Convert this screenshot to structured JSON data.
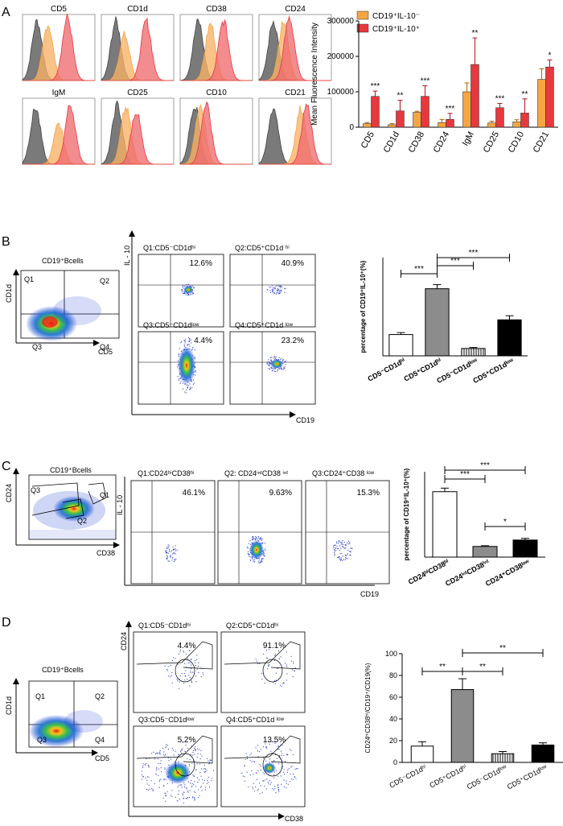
{
  "panels": {
    "A": {
      "letter": "A",
      "histograms": [
        {
          "label": "CD5"
        },
        {
          "label": "CD1d"
        },
        {
          "label": "CD38"
        },
        {
          "label": "CD24"
        },
        {
          "label": "IgM"
        },
        {
          "label": "CD25"
        },
        {
          "label": "CD10"
        },
        {
          "label": "CD21"
        }
      ],
      "legend": {
        "neg": "CD19⁺IL-10⁻",
        "pos": "CD19⁺IL-10⁺"
      },
      "colors": {
        "neg": "#f4a341",
        "pos": "#e8383d",
        "gray": "#555555",
        "negFill": "#f7b266",
        "posFill": "#ee6b6f"
      }
    },
    "B": {
      "letter": "B",
      "gate_title": "CD19⁺Bcells",
      "quads": [
        "Q1",
        "Q2",
        "Q3",
        "Q4"
      ],
      "x_axis": "CD5",
      "y_axis": "CD1d",
      "sub": [
        {
          "title": "Q1:CD5⁻CD1dʰⁱ",
          "pct": "12.6%"
        },
        {
          "title": "Q2:CD5⁺CD1d ʰⁱ",
          "pct": "40.9%"
        },
        {
          "title": "Q3:CD5⁻CD1dˡᵒʷ",
          "pct": "4.4%"
        },
        {
          "title": "Q4:CD5⁺CD1d ˡᵒʷ",
          "pct": "23.2%"
        }
      ],
      "il10": "IL - 10",
      "cd19": "CD19"
    },
    "C": {
      "letter": "C",
      "gate_title": "CD19⁺Bcells",
      "gates": [
        "Q3",
        "Q1",
        "Q2"
      ],
      "x_axis": "CD38",
      "y_axis": "CD24",
      "sub": [
        {
          "title": "Q1:CD24ʰⁱCD38ʰⁱ",
          "pct": "46.1%"
        },
        {
          "title": "Q2: CD24ⁱⁿᵗCD38 ⁱⁿᵗ",
          "pct": "9.63%"
        },
        {
          "title": "Q3:CD24⁺CD38 ˡᵒʷ",
          "pct": "15.3%"
        }
      ],
      "il10": "IL - 10",
      "cd19": "CD19"
    },
    "D": {
      "letter": "D",
      "gate_title": "CD19⁺Bcells",
      "quads": [
        "Q1",
        "Q2",
        "Q3",
        "Q4"
      ],
      "x_axis": "CD5",
      "y_axis": "CD1d",
      "sub": [
        {
          "title": "Q1:CD5⁻CD1dʰⁱ",
          "pct": "4.4%"
        },
        {
          "title": "Q2:CD5⁺CD1dʰⁱ",
          "pct": "91.1%"
        },
        {
          "title": "Q3:CD5⁻CD1dˡᵒʷ",
          "pct": "5.2%"
        },
        {
          "title": "Q4:CD5⁺CD1d ˡᵒʷ",
          "pct": "13.5%"
        }
      ],
      "cd24": "CD24",
      "cd38": "CD38"
    }
  },
  "chart_data": [
    {
      "id": "A",
      "type": "bar",
      "title": "",
      "xlabel": "",
      "ylabel": "Mean Fluorescence Intensity",
      "ylim": [
        0,
        300000
      ],
      "yticks": [
        0,
        100000,
        200000,
        300000
      ],
      "ytick_labels": [
        "0",
        "100000",
        "200000",
        "300000"
      ],
      "categories": [
        "CD5",
        "CD1d",
        "CD38",
        "CD24",
        "IgM",
        "CD25",
        "CD10",
        "CD21"
      ],
      "series": [
        {
          "name": "CD19⁺IL-10⁻",
          "values": [
            10000,
            7000,
            42000,
            13000,
            100000,
            12000,
            15000,
            135000
          ],
          "errors": [
            3000,
            3000,
            3000,
            9000,
            25000,
            5000,
            6000,
            30000
          ]
        },
        {
          "name": "CD19⁺IL-10⁺",
          "values": [
            87000,
            46000,
            87000,
            22000,
            177000,
            55000,
            40000,
            170000
          ],
          "errors": [
            15000,
            30000,
            30000,
            17000,
            75000,
            12000,
            40000,
            20000
          ]
        }
      ],
      "significance": [
        "***",
        "**",
        "***",
        "***",
        "**",
        "***",
        "**",
        "*"
      ]
    },
    {
      "id": "B",
      "type": "bar",
      "ylabel": "percentage of CD19⁺IL-10⁺(%)",
      "ylim": [
        0,
        60
      ],
      "categories": [
        "CD5⁻CD1dʰⁱ",
        "CD5⁺CD1dʰⁱ",
        "CD5⁻CD1dˡᵒʷ",
        "CD5⁺CD1dˡᵒʷ"
      ],
      "values": [
        13,
        41,
        4.5,
        22
      ],
      "errors": [
        1.2,
        2.5,
        0.6,
        2.5
      ],
      "brackets": [
        {
          "from": 0,
          "to": 1,
          "label": "***"
        },
        {
          "from": 1,
          "to": 2,
          "label": "***"
        },
        {
          "from": 1,
          "to": 3,
          "label": "***"
        }
      ]
    },
    {
      "id": "C",
      "type": "bar",
      "ylabel": "percentage of CD19⁺IL-10⁺(%)",
      "ylim": [
        0,
        60
      ],
      "categories": [
        "CD24ʰⁱCD38ʰⁱ",
        "CD24ⁱⁿᵗCD38ⁱⁿᵗ",
        "CD24⁺CD38ˡᵒʷ"
      ],
      "values": [
        46,
        7.5,
        12
      ],
      "errors": [
        2.5,
        0.5,
        1.2
      ],
      "brackets": [
        {
          "from": 0,
          "to": 1,
          "label": "***"
        },
        {
          "from": 0,
          "to": 2,
          "label": "***"
        },
        {
          "from": 1,
          "to": 2,
          "label": "*"
        }
      ]
    },
    {
      "id": "D",
      "type": "bar",
      "ylabel": "CD24ʰⁱCD38ʰⁱ/CD19⁺/CD19(%)",
      "ylim": [
        0,
        100
      ],
      "yticks": [
        0,
        20,
        40,
        60,
        80,
        100
      ],
      "ytick_labels": [
        "0",
        "20",
        "40",
        "60",
        "80",
        "100"
      ],
      "categories": [
        "CD5⁻CD1dʰⁱ",
        "CD5⁺CD1dʰⁱ",
        "CD5⁻CD1dˡᵒʷ",
        "CD5⁺CD1dˡᵒʷ"
      ],
      "values": [
        15,
        67,
        8,
        16
      ],
      "errors": [
        4,
        10,
        2,
        2
      ],
      "brackets": [
        {
          "from": 0,
          "to": 1,
          "label": "**"
        },
        {
          "from": 1,
          "to": 2,
          "label": "**"
        },
        {
          "from": 1,
          "to": 3,
          "label": "**"
        }
      ]
    }
  ]
}
